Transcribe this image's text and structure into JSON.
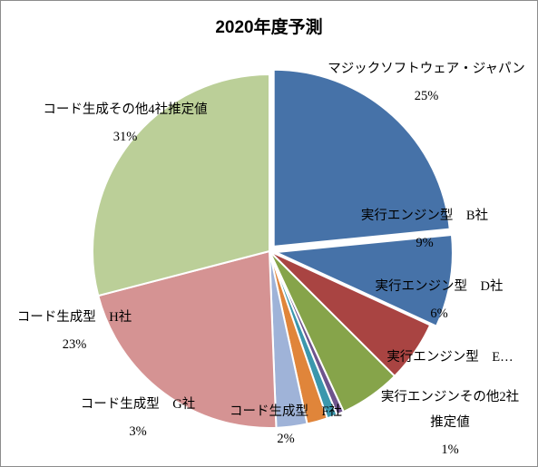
{
  "chart_data": {
    "type": "pie",
    "title": "2020年度予測",
    "slices": [
      {
        "label": "マジックソフトウェア・ジャパン",
        "value": 25,
        "value_label": "25%",
        "color": "#4672a8",
        "exploded": true
      },
      {
        "label": "実行エンジン型　B社",
        "value": 9,
        "value_label": "9%",
        "color": "#4672a8",
        "exploded": true
      },
      {
        "label": "実行エンジン型　D社",
        "value": 6,
        "value_label": "6%",
        "color": "#a94442",
        "exploded": false
      },
      {
        "label": "実行エンジン型　E…",
        "value": 6,
        "value_label": "",
        "color": "#86a44a",
        "exploded": false
      },
      {
        "label": "",
        "value": 0.7,
        "value_label": "",
        "color": "#6e548d",
        "exploded": false
      },
      {
        "label": "実行エンジンその他2社推定値",
        "value": 1,
        "value_label": "1%",
        "color": "#3b97ad",
        "exploded": false
      },
      {
        "label": "コード生成型　F社",
        "value": 2,
        "value_label": "2%",
        "color": "#e0853a",
        "exploded": false
      },
      {
        "label": "コード生成型　G社",
        "value": 3,
        "value_label": "3%",
        "color": "#9fb3d8",
        "exploded": false
      },
      {
        "label": "コード生成型　H社",
        "value": 23,
        "value_label": "23%",
        "color": "#d59393",
        "exploded": false
      },
      {
        "label": "コード生成その他4社推定値",
        "value": 31,
        "value_label": "31%",
        "color": "#bbcf98",
        "exploded": false
      }
    ],
    "legend": "none"
  }
}
